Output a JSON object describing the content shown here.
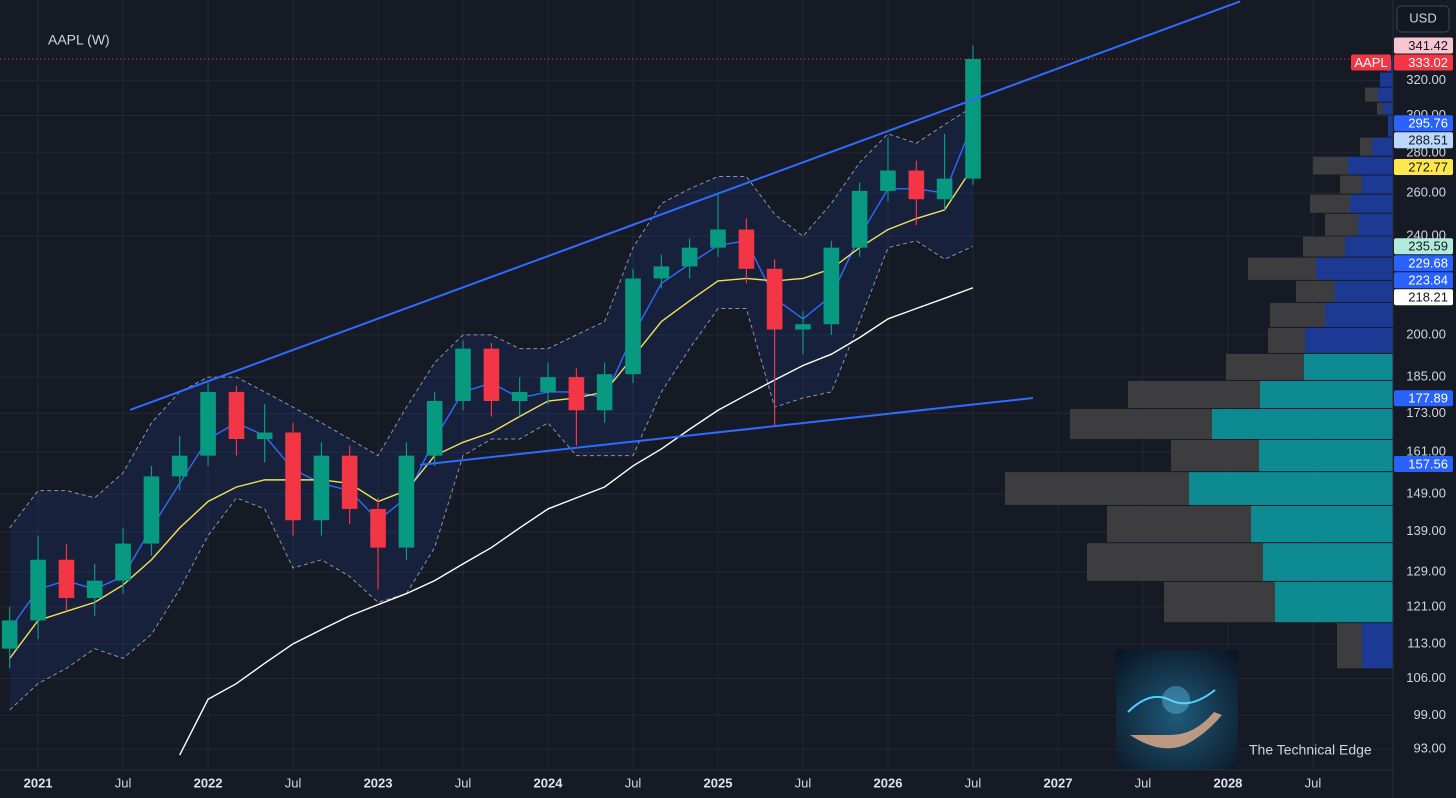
{
  "chart_data": {
    "type": "candlestick",
    "title": "AAPL (W)",
    "currency": "USD",
    "symbol": "AAPL",
    "log_scale": true,
    "grid": true,
    "xlim": [
      2020.776,
      2028.971
    ],
    "xticks": [
      2021,
      {
        "value": 2021.5,
        "label": "Jul"
      },
      2022,
      {
        "value": 2022.5,
        "label": "Jul"
      },
      2023,
      {
        "value": 2023.5,
        "label": "Jul"
      },
      2024,
      {
        "value": 2024.5,
        "label": "Jul"
      },
      2025,
      {
        "value": 2025.5,
        "label": "Jul"
      },
      2026,
      {
        "value": 2026.5,
        "label": "Jul"
      },
      2027,
      {
        "value": 2027.5,
        "label": "Jul"
      },
      2028,
      {
        "value": 2028.5,
        "label": "Jul"
      }
    ],
    "ylim": [
      89.5,
      371.4
    ],
    "yticks": [
      {
        "value": 93,
        "label": "93.00"
      },
      {
        "value": 99,
        "label": "99.00"
      },
      {
        "value": 106,
        "label": "106.00"
      },
      {
        "value": 113,
        "label": "113.00"
      },
      {
        "value": 121,
        "label": "121.00"
      },
      {
        "value": 129,
        "label": "129.00"
      },
      {
        "value": 139,
        "label": "139.00"
      },
      {
        "value": 149,
        "label": "149.00"
      },
      {
        "value": 161,
        "label": "161.00"
      },
      {
        "value": 173,
        "label": "173.00"
      },
      {
        "value": 185,
        "label": "185.00"
      },
      {
        "value": 200,
        "label": "200.00"
      },
      {
        "value": 240,
        "label": "240.00"
      },
      {
        "value": 260,
        "label": "260.00"
      },
      {
        "value": 280,
        "label": "280.00"
      },
      {
        "value": 300,
        "label": "300.00"
      },
      {
        "value": 320,
        "label": "320.00"
      }
    ],
    "up_color": "#089981",
    "down_color": "#f23645",
    "x": [
      2020.833,
      2021.0,
      2021.167,
      2021.333,
      2021.5,
      2021.667,
      2021.833,
      2022.0,
      2022.167,
      2022.333,
      2022.5,
      2022.667,
      2022.833,
      2023.0,
      2023.167,
      2023.333,
      2023.5,
      2023.667,
      2023.833,
      2024.0,
      2024.167,
      2024.333,
      2024.5,
      2024.667,
      2024.833,
      2025.0,
      2025.167,
      2025.333,
      2025.5,
      2025.667,
      2025.833,
      2026.0,
      2026.167,
      2026.333,
      2026.5
    ],
    "open": [
      112,
      118,
      132,
      123,
      127,
      136,
      154,
      160,
      180,
      165,
      167,
      142,
      160,
      145,
      135,
      160,
      177,
      195,
      177,
      180,
      185,
      174,
      186,
      222,
      227,
      235,
      243,
      226,
      202,
      204,
      235,
      261,
      271,
      257,
      267
    ],
    "high": [
      121,
      138,
      136,
      131,
      140,
      157,
      166,
      183,
      182,
      176,
      170,
      164,
      163,
      148,
      164,
      180,
      198,
      197,
      185,
      190,
      188,
      190,
      226,
      232,
      239,
      259,
      248,
      230,
      209,
      238,
      265,
      288,
      276,
      290,
      341.42
    ],
    "low": [
      108,
      114,
      120,
      119,
      124,
      133,
      150,
      157,
      160,
      158,
      138,
      138,
      141,
      125,
      132,
      157,
      174,
      172,
      172,
      176,
      163,
      170,
      183,
      218,
      222,
      231,
      220,
      169,
      193,
      200,
      231,
      256,
      245,
      252,
      264
    ],
    "close": [
      118,
      132,
      123,
      127,
      136,
      154,
      160,
      180,
      165,
      167,
      142,
      160,
      145,
      135,
      160,
      177,
      195,
      177,
      180,
      185,
      174,
      186,
      222,
      227,
      235,
      243,
      226,
      202,
      204,
      235,
      261,
      271,
      257,
      267,
      333.02
    ],
    "band_color": "#8a93a6",
    "band_upper": [
      140,
      150,
      150,
      148,
      155,
      170,
      180,
      185,
      185,
      180,
      175,
      170,
      165,
      160,
      175,
      190,
      200,
      200,
      195,
      195,
      200,
      205,
      235,
      255,
      262,
      268,
      268,
      250,
      240,
      255,
      275,
      290,
      285,
      295,
      305
    ],
    "band_lower": [
      100,
      105,
      108,
      112,
      110,
      115,
      125,
      138,
      148,
      145,
      130,
      132,
      128,
      122,
      124,
      135,
      160,
      165,
      165,
      170,
      160,
      160,
      160,
      180,
      195,
      210,
      210,
      175,
      178,
      180,
      205,
      235,
      238,
      230,
      235.59
    ],
    "series": [
      {
        "color": "#2f6bff",
        "values": [
          116,
          125,
          127,
          125,
          128,
          140,
          152,
          165,
          170,
          166,
          156,
          152,
          150,
          142,
          148,
          165,
          180,
          183,
          178,
          180,
          180,
          178,
          200,
          220,
          228,
          236,
          238,
          214,
          206,
          215,
          240,
          262,
          262,
          260,
          295.76
        ]
      },
      {
        "color": "#f2e15a",
        "values": [
          110,
          118,
          120,
          122,
          126,
          132,
          140,
          147,
          151,
          153,
          153,
          153,
          152,
          147,
          150,
          160,
          164,
          167,
          172,
          177,
          178,
          180,
          192,
          205,
          213,
          221,
          222,
          221,
          222,
          226,
          235,
          243,
          248,
          252,
          272.77
        ]
      },
      {
        "color": "#ffffff",
        "values": [
          null,
          null,
          null,
          null,
          null,
          null,
          92,
          102,
          105,
          109,
          113,
          116,
          119,
          121.5,
          124,
          127,
          131,
          135,
          140,
          145,
          148,
          151,
          157,
          162,
          168,
          174,
          179,
          184,
          189,
          193,
          199,
          206,
          210,
          214,
          218.21
        ]
      }
    ],
    "trendlines": [
      {
        "color": "#2f6bff",
        "x": [
          2021.541,
          2028.071
        ],
        "y": [
          174.1,
          370.4
        ]
      },
      {
        "color": "#2f6bff",
        "x": [
          2023.247,
          2026.853
        ],
        "y": [
          157.3,
          178.0
        ]
      }
    ],
    "last_price": {
      "value": 333.02,
      "color": "#f23645",
      "text_color": "#ffffff"
    },
    "price_labels": [
      {
        "value": 341.42,
        "color": "#f7c6d0",
        "text_color": "#131722"
      },
      {
        "value": 295.76,
        "color": "#2962ff",
        "text_color": "#ffffff"
      },
      {
        "value": 288.51,
        "color": "#bbd9fb",
        "text_color": "#131722"
      },
      {
        "value": 272.77,
        "color": "#fde74c",
        "text_color": "#131722"
      },
      {
        "value": 235.59,
        "color": "#b2ebd8",
        "text_color": "#131722"
      },
      {
        "value": 229.68,
        "color": "#2962ff",
        "text_color": "#ffffff"
      },
      {
        "value": 223.84,
        "color": "#2962ff",
        "text_color": "#ffffff"
      },
      {
        "value": 218.21,
        "color": "#ffffff",
        "text_color": "#131722"
      },
      {
        "value": 177.89,
        "color": "#2962ff",
        "text_color": "#ffffff"
      },
      {
        "value": 157.56,
        "color": "#2962ff",
        "text_color": "#ffffff"
      }
    ],
    "volume_profile": {
      "down_color": "#3d3d40",
      "rows": [
        {
          "low": 324.8,
          "high": 332.7,
          "up": 6,
          "down": 0,
          "color": "#1c3a94"
        },
        {
          "low": 315.9,
          "high": 324.8,
          "up": 13,
          "down": 0,
          "color": "#1c3a94"
        },
        {
          "low": 307.2,
          "high": 315.9,
          "up": 15,
          "down": 13,
          "color": "#1c3a94"
        },
        {
          "low": 300.0,
          "high": 307.2,
          "up": 10,
          "down": 6,
          "color": "#1c3a94"
        },
        {
          "low": 288.0,
          "high": 300.0,
          "up": 5,
          "down": 0,
          "color": "#1c3a94"
        },
        {
          "low": 278.0,
          "high": 288.0,
          "up": 21,
          "down": 12,
          "color": "#1c3a94"
        },
        {
          "low": 268.5,
          "high": 278.0,
          "up": 45,
          "down": 35,
          "color": "#1c3a94"
        },
        {
          "low": 259.2,
          "high": 268.5,
          "up": 31,
          "down": 22,
          "color": "#1c3a94"
        },
        {
          "low": 250.2,
          "high": 259.2,
          "up": 43,
          "down": 40,
          "color": "#1c3a94"
        },
        {
          "low": 239.8,
          "high": 250.2,
          "up": 35,
          "down": 33,
          "color": "#1c3a94"
        },
        {
          "low": 230.7,
          "high": 239.8,
          "up": 48,
          "down": 42,
          "color": "#1c3a94"
        },
        {
          "low": 221.0,
          "high": 230.7,
          "up": 77,
          "down": 68,
          "color": "#1c3a94"
        },
        {
          "low": 212.2,
          "high": 221.0,
          "up": 58,
          "down": 39,
          "color": "#1c3a94"
        },
        {
          "low": 202.6,
          "high": 212.2,
          "up": 68,
          "down": 55,
          "color": "#1c3a94"
        },
        {
          "low": 193.1,
          "high": 202.6,
          "up": 88,
          "down": 37,
          "color": "#1c3a94"
        },
        {
          "low": 183.7,
          "high": 193.1,
          "up": 89,
          "down": 78,
          "color": "#0e8a93"
        },
        {
          "low": 174.4,
          "high": 183.7,
          "up": 133,
          "down": 132,
          "color": "#0e8a93"
        },
        {
          "low": 164.7,
          "high": 174.4,
          "up": 181,
          "down": 142,
          "color": "#0e8a93"
        },
        {
          "low": 155.2,
          "high": 164.7,
          "up": 134,
          "down": 88,
          "color": "#0e8a93"
        },
        {
          "low": 145.8,
          "high": 155.2,
          "up": 204,
          "down": 184,
          "color": "#0e8a93"
        },
        {
          "low": 136.1,
          "high": 145.8,
          "up": 142,
          "down": 144,
          "color": "#0e8a93"
        },
        {
          "low": 126.7,
          "high": 136.1,
          "up": 130,
          "down": 176,
          "color": "#0e8a93"
        },
        {
          "low": 117.4,
          "high": 126.7,
          "up": 118,
          "down": 111,
          "color": "#0e8a93"
        },
        {
          "low": 107.8,
          "high": 117.4,
          "up": 31,
          "down": 25,
          "color": "#1c3a94"
        }
      ]
    },
    "watermark": "The Technical Edge"
  }
}
